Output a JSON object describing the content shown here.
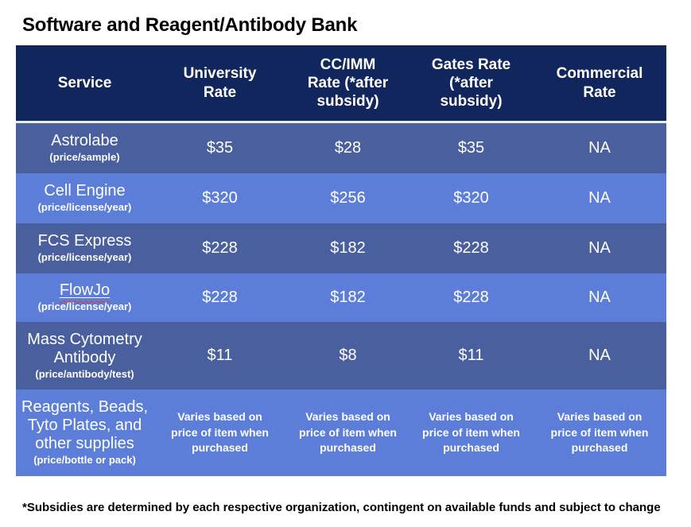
{
  "title": "Software and Reagent/Antibody Bank",
  "footnote": "*Subsidies are determined by each respective organization, contingent on available funds and subject to change",
  "colors": {
    "header_bg": "#12265E",
    "row_dark": "#4A5F9E",
    "row_light": "#5C7ED8",
    "separator": "#E9EDF7",
    "header_text": "#FFFFFF",
    "spellcheck_wavy": "#DE3A2B"
  },
  "table": {
    "columns": [
      {
        "label": "Service"
      },
      {
        "label": "University\nRate"
      },
      {
        "label": "CC/IMM\nRate (*after\nsubsidy)"
      },
      {
        "label": "Gates Rate\n(*after\nsubsidy)"
      },
      {
        "label": "Commercial\nRate"
      }
    ],
    "rows": [
      {
        "service": "Astrolabe",
        "unit": "(price/sample)",
        "values": [
          "$35",
          "$28",
          "$35",
          "NA"
        ]
      },
      {
        "service": "Cell Engine",
        "unit": "(price/license/year)",
        "values": [
          "$320",
          "$256",
          "$320",
          "NA"
        ]
      },
      {
        "service": "FCS Express",
        "unit": "(price/license/year)",
        "values": [
          "$228",
          "$182",
          "$228",
          "NA"
        ]
      },
      {
        "service": "FlowJo",
        "unit": "(price/license/year)",
        "values": [
          "$228",
          "$182",
          "$228",
          "NA"
        ]
      },
      {
        "service": "Mass Cytometry\nAntibody",
        "unit": "(price/antibody/test)",
        "values": [
          "$11",
          "$8",
          "$11",
          "NA"
        ]
      },
      {
        "service": "Reagents, Beads,\nTyto Plates, and\nother supplies",
        "unit": "(price/bottle or pack)",
        "values": [
          "Varies based on\nprice of item when\npurchased",
          "Varies based on\nprice of item when\npurchased",
          "Varies based on\nprice of item when\npurchased",
          "Varies based on\nprice of item when\npurchased"
        ]
      }
    ]
  }
}
